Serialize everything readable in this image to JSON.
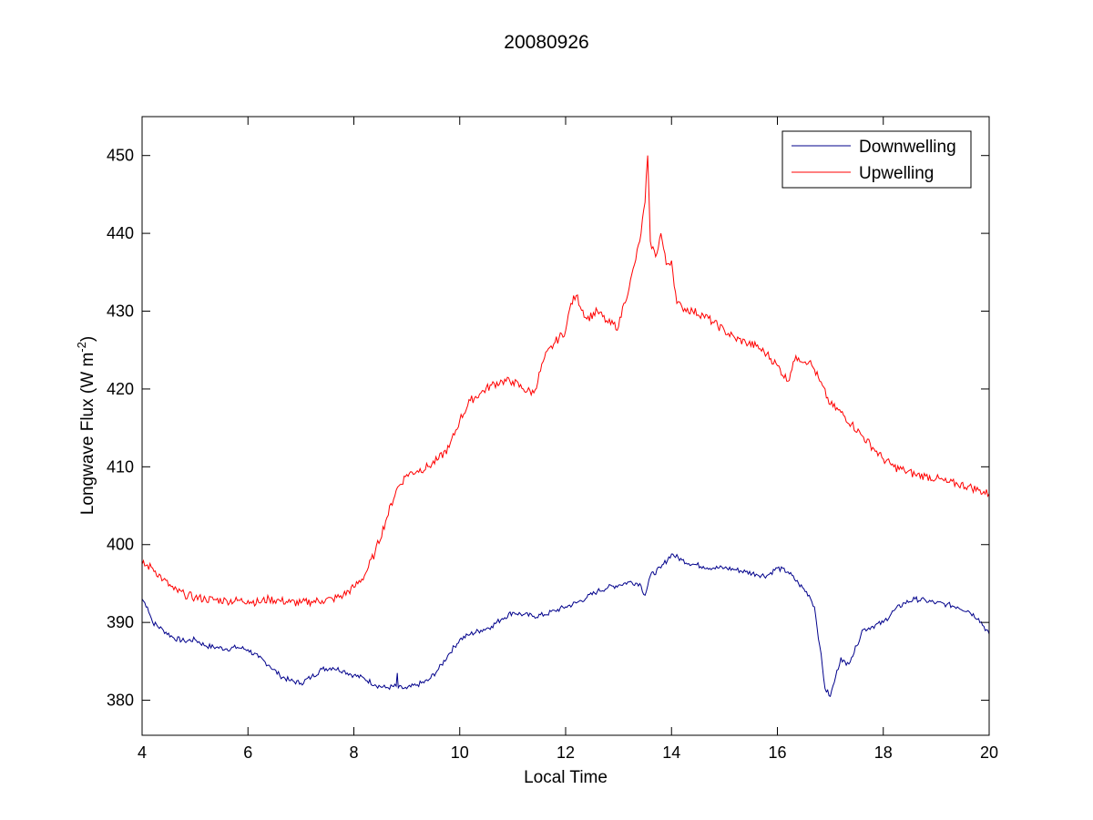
{
  "chart_data": {
    "type": "line",
    "title": "20080926",
    "xlabel": "Local Time",
    "ylabel_main": "Longwave Flux (W m",
    "ylabel_sup": "-2",
    "ylabel_close": ")",
    "xlim": [
      4,
      20
    ],
    "ylim": [
      375.5,
      455
    ],
    "xticks": [
      4,
      6,
      8,
      10,
      12,
      14,
      16,
      18,
      20
    ],
    "yticks": [
      380,
      390,
      400,
      410,
      420,
      430,
      440,
      450
    ],
    "grid": false,
    "legend_position": "top-right",
    "series": [
      {
        "name": "Downwelling",
        "color": "#00008b",
        "x": [
          4.0,
          4.1,
          4.2,
          4.4,
          4.6,
          4.8,
          5.0,
          5.2,
          5.4,
          5.6,
          5.8,
          6.0,
          6.2,
          6.4,
          6.6,
          6.8,
          7.0,
          7.2,
          7.4,
          7.6,
          7.8,
          8.0,
          8.2,
          8.4,
          8.6,
          8.8,
          8.82,
          8.84,
          9.0,
          9.2,
          9.4,
          9.6,
          9.8,
          10.0,
          10.2,
          10.4,
          10.6,
          10.8,
          11.0,
          11.2,
          11.4,
          11.6,
          11.8,
          12.0,
          12.2,
          12.4,
          12.6,
          12.8,
          13.0,
          13.2,
          13.4,
          13.5,
          13.6,
          13.8,
          14.0,
          14.2,
          14.4,
          14.6,
          14.8,
          15.0,
          15.2,
          15.4,
          15.6,
          15.8,
          16.0,
          16.2,
          16.4,
          16.6,
          16.7,
          16.8,
          16.9,
          17.0,
          17.1,
          17.2,
          17.3,
          17.4,
          17.5,
          17.6,
          17.8,
          18.0,
          18.2,
          18.4,
          18.6,
          18.8,
          19.0,
          19.2,
          19.4,
          19.6,
          19.8,
          20.0
        ],
        "y": [
          393.0,
          392.0,
          390.0,
          389.0,
          388.0,
          387.6,
          387.8,
          387.0,
          386.8,
          386.6,
          386.8,
          386.5,
          385.5,
          384.5,
          383.2,
          382.5,
          382.2,
          383.0,
          384.0,
          384.2,
          383.8,
          383.2,
          382.8,
          382.0,
          381.6,
          381.8,
          383.5,
          381.6,
          381.5,
          382.0,
          382.5,
          384.0,
          386.0,
          387.8,
          388.5,
          389.0,
          389.5,
          390.5,
          391.3,
          391.0,
          390.8,
          391.0,
          391.5,
          392.0,
          392.5,
          393.2,
          394.0,
          394.5,
          394.8,
          395.2,
          395.0,
          393.5,
          396.0,
          397.0,
          398.8,
          398.0,
          397.5,
          397.2,
          397.0,
          397.0,
          396.8,
          396.5,
          396.2,
          396.0,
          397.0,
          396.5,
          395.0,
          393.5,
          392.0,
          387.0,
          381.5,
          380.5,
          383.0,
          385.5,
          384.5,
          385.5,
          387.0,
          389.0,
          389.5,
          390.0,
          391.5,
          392.5,
          393.0,
          392.8,
          392.5,
          392.3,
          392.0,
          391.5,
          390.5,
          388.5
        ]
      },
      {
        "name": "Upwelling",
        "color": "#ff0000",
        "x": [
          4.0,
          4.2,
          4.4,
          4.6,
          4.8,
          5.0,
          5.2,
          5.4,
          5.6,
          5.8,
          6.0,
          6.2,
          6.4,
          6.6,
          6.8,
          7.0,
          7.2,
          7.4,
          7.6,
          7.8,
          8.0,
          8.2,
          8.4,
          8.6,
          8.8,
          9.0,
          9.2,
          9.4,
          9.6,
          9.8,
          10.0,
          10.2,
          10.4,
          10.6,
          10.8,
          11.0,
          11.2,
          11.4,
          11.6,
          11.8,
          12.0,
          12.1,
          12.2,
          12.4,
          12.6,
          12.8,
          13.0,
          13.1,
          13.2,
          13.3,
          13.4,
          13.5,
          13.55,
          13.6,
          13.7,
          13.8,
          13.9,
          14.0,
          14.1,
          14.2,
          14.4,
          14.6,
          14.8,
          15.0,
          15.2,
          15.4,
          15.6,
          15.8,
          16.0,
          16.2,
          16.3,
          16.4,
          16.6,
          16.7,
          16.8,
          17.0,
          17.2,
          17.4,
          17.6,
          17.8,
          18.0,
          18.2,
          18.4,
          18.6,
          18.8,
          19.0,
          19.2,
          19.4,
          19.6,
          19.8,
          20.0
        ],
        "y": [
          397.5,
          397.0,
          395.5,
          394.2,
          393.6,
          393.2,
          393.0,
          392.9,
          392.8,
          392.8,
          392.8,
          392.6,
          393.0,
          392.8,
          392.6,
          392.5,
          392.7,
          392.8,
          393.0,
          393.5,
          394.5,
          396.0,
          399.0,
          403.0,
          407.0,
          409.0,
          409.5,
          410.0,
          411.0,
          412.5,
          416.0,
          418.5,
          419.5,
          420.5,
          421.0,
          421.0,
          420.0,
          419.5,
          424.0,
          426.0,
          427.5,
          431.0,
          432.0,
          429.0,
          430.0,
          428.5,
          428.0,
          431.0,
          433.0,
          436.0,
          439.0,
          444.0,
          450.0,
          439.0,
          437.0,
          440.0,
          436.0,
          436.5,
          431.0,
          430.5,
          430.0,
          429.5,
          428.5,
          427.5,
          426.5,
          426.0,
          425.5,
          424.5,
          423.0,
          421.0,
          423.5,
          424.0,
          423.5,
          422.5,
          421.0,
          418.0,
          417.0,
          415.5,
          414.0,
          412.5,
          411.0,
          410.0,
          409.5,
          409.0,
          408.8,
          408.5,
          408.0,
          407.8,
          407.5,
          407.0,
          406.5
        ]
      }
    ]
  }
}
